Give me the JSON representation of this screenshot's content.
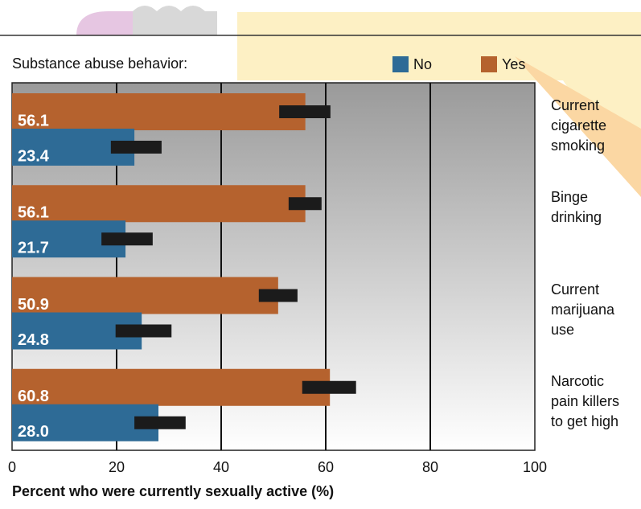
{
  "chart_data": {
    "type": "bar",
    "orientation": "horizontal",
    "legend_title": "Substance abuse behavior:",
    "xlabel": "Percent who were currently sexually active (%)",
    "categories": [
      "Current cigarette smoking",
      "Binge drinking",
      "Current marijuana use",
      "Narcotic pain killers to get high"
    ],
    "series": [
      {
        "name": "Yes",
        "color": "#b5622e",
        "values": [
          56.1,
          56.1,
          50.9,
          60.8
        ],
        "value_labels": [
          "56.1",
          "56.1",
          "50.9",
          "60.8"
        ],
        "lower": [
          51.1,
          52.9,
          47.2,
          55.5
        ],
        "upper": [
          60.9,
          59.2,
          54.6,
          65.8
        ]
      },
      {
        "name": "No",
        "color": "#2e6b96",
        "values": [
          23.4,
          21.7,
          24.8,
          28.0
        ],
        "value_labels": [
          "23.4",
          "21.7",
          "24.8",
          "28.0"
        ],
        "lower": [
          18.9,
          17.1,
          19.8,
          23.4
        ],
        "upper": [
          28.6,
          26.9,
          30.5,
          33.2
        ]
      }
    ],
    "xlim": [
      0,
      100
    ],
    "xticks": [
      0,
      20,
      40,
      60,
      80,
      100
    ],
    "grid": true
  }
}
